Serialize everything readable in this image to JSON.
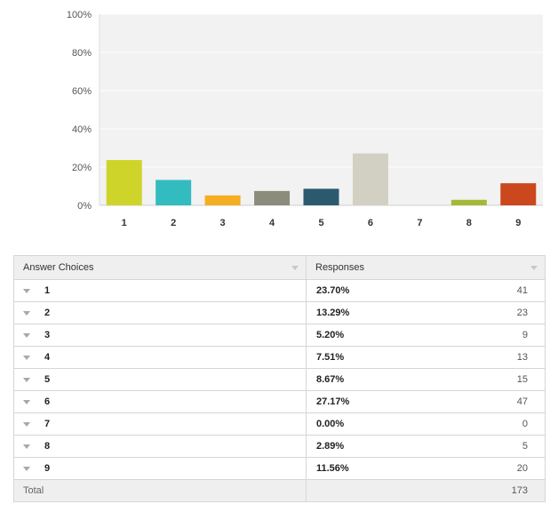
{
  "chart_data": {
    "type": "bar",
    "categories": [
      "1",
      "2",
      "3",
      "4",
      "5",
      "6",
      "7",
      "8",
      "9"
    ],
    "values": [
      23.7,
      13.29,
      5.2,
      7.51,
      8.67,
      27.17,
      0.0,
      2.89,
      11.56
    ],
    "colors": [
      "#cfd42a",
      "#33bcc0",
      "#f5ae21",
      "#8c8c7c",
      "#2b5a6e",
      "#d2d0c3",
      "#bbbbbb",
      "#a5b937",
      "#cb471e"
    ],
    "y_ticks": [
      "0%",
      "20%",
      "40%",
      "60%",
      "80%",
      "100%"
    ],
    "ylim": [
      0,
      100
    ],
    "grid": true,
    "grid_background": "#f2f2f2",
    "title": "",
    "xlabel": "",
    "ylabel": ""
  },
  "table": {
    "headers": [
      "Answer Choices",
      "Responses"
    ],
    "rows": [
      {
        "choice": "1",
        "percent": "23.70%",
        "count": "41"
      },
      {
        "choice": "2",
        "percent": "13.29%",
        "count": "23"
      },
      {
        "choice": "3",
        "percent": "5.20%",
        "count": "9"
      },
      {
        "choice": "4",
        "percent": "7.51%",
        "count": "13"
      },
      {
        "choice": "5",
        "percent": "8.67%",
        "count": "15"
      },
      {
        "choice": "6",
        "percent": "27.17%",
        "count": "47"
      },
      {
        "choice": "7",
        "percent": "0.00%",
        "count": "0"
      },
      {
        "choice": "8",
        "percent": "2.89%",
        "count": "5"
      },
      {
        "choice": "9",
        "percent": "11.56%",
        "count": "20"
      }
    ],
    "total_label": "Total",
    "total_count": "173"
  }
}
